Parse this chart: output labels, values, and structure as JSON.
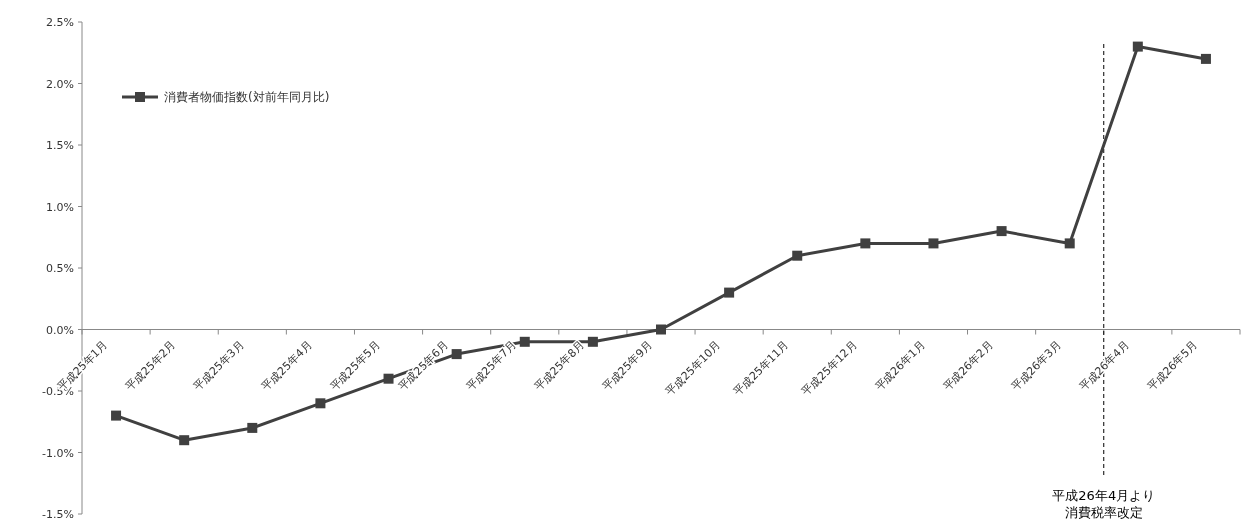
{
  "chart_data": {
    "type": "line",
    "categories": [
      "平成25年1月",
      "平成25年2月",
      "平成25年3月",
      "平成25年4月",
      "平成25年5月",
      "平成25年6月",
      "平成25年7月",
      "平成25年8月",
      "平成25年9月",
      "平成25年10月",
      "平成25年11月",
      "平成25年12月",
      "平成26年1月",
      "平成26年2月",
      "平成26年3月",
      "平成26年4月",
      "平成26年5月"
    ],
    "series": [
      {
        "name": "消費者物価指数(対前年同月比)",
        "color": "#404040",
        "values": [
          -0.7,
          -0.9,
          -0.8,
          -0.6,
          -0.4,
          -0.2,
          -0.1,
          -0.1,
          0.0,
          0.3,
          0.6,
          0.7,
          0.7,
          0.8,
          0.7,
          2.3,
          2.2
        ]
      }
    ],
    "ylim": [
      -1.5,
      2.5
    ],
    "yticks": [
      {
        "value": -1.5,
        "label": "-1.5%"
      },
      {
        "value": -1.0,
        "label": "-1.0%"
      },
      {
        "value": -0.5,
        "label": "-0.5%"
      },
      {
        "value": 0.0,
        "label": "0.0%"
      },
      {
        "value": 0.5,
        "label": "0.5%"
      },
      {
        "value": 1.0,
        "label": "1.0%"
      },
      {
        "value": 1.5,
        "label": "1.5%"
      },
      {
        "value": 2.0,
        "label": "2.0%"
      },
      {
        "value": 2.5,
        "label": "2.5%"
      }
    ],
    "ref_lines": [
      {
        "axis": "x",
        "value": "平成26年4月",
        "label": "平成26年4月より消費税率改定",
        "color": "#000000",
        "line_style": "dashed"
      }
    ],
    "marker": "square",
    "line_style": "solid",
    "legend": "top left",
    "grid": false
  }
}
